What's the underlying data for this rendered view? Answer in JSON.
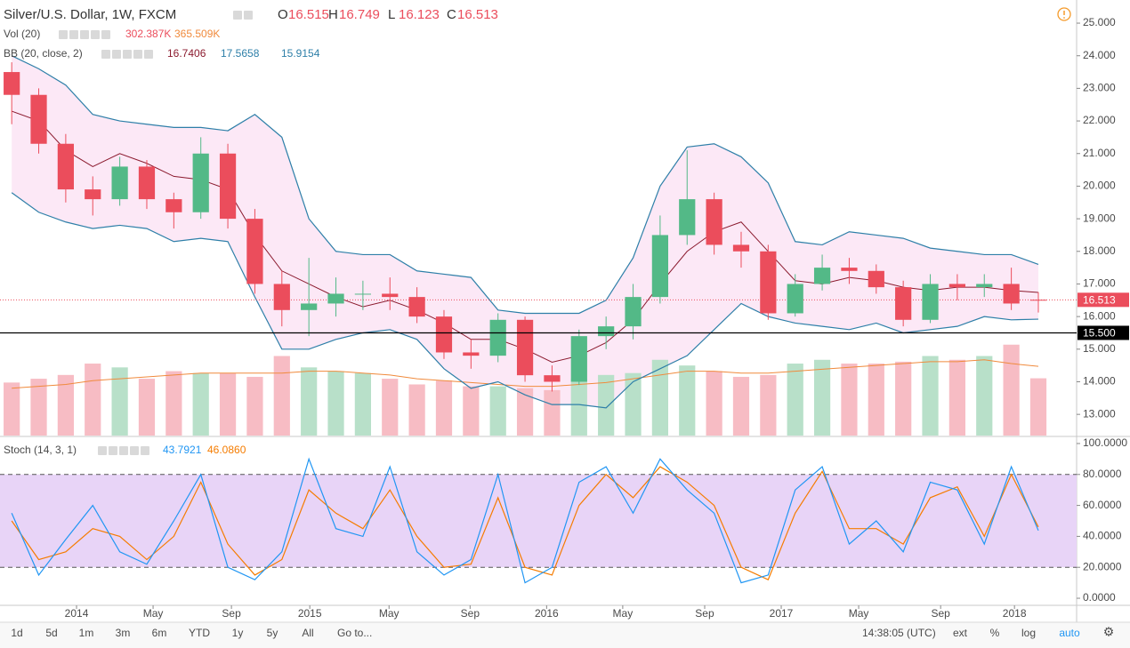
{
  "chart_data": {
    "type": "candlestick",
    "title": "Silver/U.S. Dollar, 1W, FXCM",
    "ohlc_legend": [
      {
        "label": "O",
        "value": "16.515"
      },
      {
        "label": "H",
        "value": "16.749"
      },
      {
        "label": "L",
        "value": "16.123"
      },
      {
        "label": "C",
        "value": "16.513"
      }
    ],
    "x": [
      2,
      8,
      14,
      20,
      26,
      32,
      38,
      44,
      50,
      56,
      62,
      68,
      74,
      80,
      86,
      92,
      98,
      104,
      110,
      116,
      122,
      128,
      134,
      140,
      146,
      152,
      158,
      164,
      170,
      176,
      182,
      188,
      194,
      200,
      206,
      212,
      218,
      224,
      230
    ],
    "xlim": [
      -0.6,
      238.5
    ],
    "xticks": [
      {
        "value": 16.4,
        "label": "2014"
      },
      {
        "value": 33.4,
        "label": "May"
      },
      {
        "value": 50.8,
        "label": "Sep"
      },
      {
        "value": 68.2,
        "label": "2015"
      },
      {
        "value": 85.8,
        "label": "May"
      },
      {
        "value": 103.8,
        "label": "Sep"
      },
      {
        "value": 120.8,
        "label": "2016"
      },
      {
        "value": 137.7,
        "label": "May"
      },
      {
        "value": 155.9,
        "label": "Sep"
      },
      {
        "value": 172.9,
        "label": "2017"
      },
      {
        "value": 190.1,
        "label": "May"
      },
      {
        "value": 208.3,
        "label": "Sep"
      },
      {
        "value": 224.7,
        "label": "2018"
      }
    ],
    "open": [
      23.5,
      22.8,
      21.3,
      19.9,
      19.6,
      20.6,
      19.6,
      19.2,
      21.0,
      19.0,
      17.0,
      16.2,
      16.4,
      16.7,
      16.7,
      16.6,
      16.0,
      14.9,
      14.8,
      15.9,
      14.2,
      14.0,
      15.4,
      15.7,
      16.6,
      18.5,
      19.6,
      18.2,
      18.0,
      16.1,
      17.0,
      17.5,
      17.4,
      16.9,
      15.9,
      17.0,
      16.9,
      17.0,
      16.515
    ],
    "high": [
      23.8,
      23.0,
      21.6,
      20.3,
      20.9,
      20.8,
      19.8,
      21.5,
      21.3,
      19.3,
      17.4,
      17.8,
      17.2,
      17.1,
      17.2,
      16.9,
      16.2,
      15.3,
      16.1,
      16.0,
      14.5,
      15.6,
      16.0,
      17.0,
      19.1,
      21.1,
      19.8,
      18.6,
      18.2,
      17.3,
      17.9,
      17.8,
      17.6,
      17.1,
      17.3,
      17.3,
      17.3,
      17.5,
      16.749
    ],
    "low": [
      21.9,
      21.0,
      19.5,
      19.1,
      19.4,
      19.3,
      18.7,
      19.0,
      18.7,
      16.7,
      15.7,
      15.4,
      16.0,
      16.2,
      16.2,
      15.8,
      14.7,
      14.4,
      14.6,
      14.0,
      13.7,
      13.9,
      15.0,
      15.3,
      16.4,
      18.2,
      17.9,
      17.5,
      15.9,
      16.0,
      16.8,
      17.0,
      16.7,
      15.7,
      15.8,
      16.5,
      16.6,
      16.2,
      16.123
    ],
    "close": [
      22.8,
      21.3,
      19.9,
      19.6,
      20.6,
      19.6,
      19.2,
      21.0,
      19.0,
      17.0,
      16.2,
      16.4,
      16.7,
      16.7,
      16.6,
      16.0,
      14.9,
      14.8,
      15.9,
      14.2,
      14.0,
      15.4,
      15.7,
      16.6,
      18.5,
      19.6,
      18.2,
      18.0,
      16.1,
      17.0,
      17.5,
      17.4,
      16.9,
      15.9,
      17.0,
      16.9,
      17.0,
      16.4,
      16.513
    ],
    "up_color": "#53b987",
    "down_color": "#eb4d5c",
    "ylim": [
      12.35,
      25.71
    ],
    "yticks": [
      {
        "value": 13,
        "label": "13.000"
      },
      {
        "value": 14,
        "label": "14.000"
      },
      {
        "value": 15,
        "label": "15.000"
      },
      {
        "value": 16,
        "label": "16.000"
      },
      {
        "value": 17,
        "label": "17.000"
      },
      {
        "value": 18,
        "label": "18.000"
      },
      {
        "value": 19,
        "label": "19.000"
      },
      {
        "value": 20,
        "label": "20.000"
      },
      {
        "value": 21,
        "label": "21.000"
      },
      {
        "value": 22,
        "label": "22.000"
      },
      {
        "value": 23,
        "label": "23.000"
      },
      {
        "value": 24,
        "label": "24.000"
      },
      {
        "value": 25,
        "label": "25.000"
      }
    ],
    "price_lines": [
      {
        "value": 16.513,
        "label": "16.513",
        "color": "#eb4d5c"
      },
      {
        "value": 15.5,
        "label": "15.500",
        "color": "#000000"
      }
    ],
    "bollinger": {
      "label": "BB (20, close, 2)",
      "legend_values": [
        "16.7406",
        "17.5658",
        "15.9154"
      ],
      "band_color": "#2e7fa8",
      "basis_color": "#8b1a2e",
      "fill": "#fce8f6",
      "upper": [
        24.0,
        23.6,
        23.1,
        22.2,
        22.0,
        21.9,
        21.8,
        21.8,
        21.7,
        22.2,
        21.5,
        19.0,
        18.0,
        17.9,
        17.9,
        17.4,
        17.3,
        17.2,
        16.2,
        16.1,
        16.1,
        16.1,
        16.5,
        17.8,
        20.0,
        21.2,
        21.3,
        20.9,
        20.1,
        18.3,
        18.2,
        18.6,
        18.5,
        18.4,
        18.1,
        18.0,
        17.9,
        17.9,
        17.6
      ],
      "middle": [
        22.3,
        22.0,
        21.1,
        20.6,
        21.0,
        20.7,
        20.3,
        20.2,
        19.9,
        18.5,
        17.4,
        17.0,
        16.6,
        16.3,
        16.5,
        16.2,
        15.8,
        15.3,
        15.3,
        15.0,
        14.6,
        14.8,
        15.2,
        15.9,
        17.0,
        18.0,
        18.6,
        18.9,
        18.0,
        17.1,
        17.0,
        17.2,
        17.1,
        16.9,
        16.8,
        16.9,
        16.9,
        16.8,
        16.74
      ],
      "lower": [
        19.8,
        19.2,
        18.9,
        18.7,
        18.8,
        18.7,
        18.3,
        18.4,
        18.3,
        16.6,
        15.0,
        15.0,
        15.3,
        15.5,
        15.6,
        15.3,
        14.4,
        13.8,
        14.0,
        13.6,
        13.3,
        13.3,
        13.2,
        14.0,
        14.4,
        14.8,
        15.6,
        16.4,
        16.0,
        15.8,
        15.7,
        15.6,
        15.8,
        15.5,
        15.6,
        15.7,
        16.0,
        15.9,
        15.92
      ]
    },
    "volume": {
      "label": "Vol (20)",
      "legend_values": [
        "302.387K",
        "365.509K"
      ],
      "ylim": [
        0,
        2300
      ],
      "up_color": "#b8e0c9",
      "down_color": "#f7bcc4",
      "ma_color": "#f08a3c",
      "values": [
        280,
        300,
        320,
        380,
        360,
        300,
        340,
        330,
        330,
        310,
        420,
        360,
        340,
        330,
        300,
        270,
        290,
        260,
        260,
        250,
        240,
        300,
        320,
        330,
        400,
        370,
        340,
        310,
        320,
        380,
        400,
        380,
        380,
        390,
        420,
        400,
        420,
        480,
        302.387
      ],
      "ma": [
        250,
        260,
        270,
        290,
        300,
        310,
        320,
        330,
        330,
        330,
        330,
        340,
        340,
        330,
        320,
        300,
        290,
        280,
        270,
        260,
        260,
        270,
        280,
        300,
        320,
        340,
        340,
        330,
        330,
        340,
        350,
        360,
        370,
        380,
        390,
        390,
        400,
        380,
        365.509
      ]
    },
    "stoch": {
      "label": "Stoch (14, 3, 1)",
      "legend_values": [
        "43.7921",
        "46.0860"
      ],
      "k_color": "#2196f3",
      "d_color": "#f57c00",
      "fill": "#e8d4f7",
      "band": [
        20,
        80
      ],
      "ylim": [
        -4,
        104
      ],
      "yticks": [
        {
          "value": 0,
          "label": "0.0000"
        },
        {
          "value": 20,
          "label": "20.0000"
        },
        {
          "value": 40,
          "label": "40.0000"
        },
        {
          "value": 60,
          "label": "60.0000"
        },
        {
          "value": 80,
          "label": "80.0000"
        },
        {
          "value": 100,
          "label": "100.0000"
        }
      ],
      "k": [
        55,
        15,
        38,
        60,
        30,
        22,
        50,
        80,
        20,
        12,
        30,
        90,
        45,
        40,
        85,
        30,
        15,
        25,
        80,
        10,
        20,
        75,
        85,
        55,
        90,
        70,
        55,
        10,
        15,
        70,
        85,
        35,
        50,
        30,
        75,
        70,
        35,
        85,
        43.7921
      ],
      "d": [
        50,
        25,
        30,
        45,
        40,
        25,
        40,
        75,
        35,
        15,
        25,
        70,
        55,
        45,
        70,
        40,
        20,
        22,
        65,
        20,
        15,
        60,
        80,
        65,
        85,
        75,
        60,
        20,
        12,
        55,
        82,
        45,
        45,
        35,
        65,
        72,
        40,
        80,
        46.086
      ]
    },
    "toolbar": {
      "ranges": [
        "1d",
        "5d",
        "1m",
        "3m",
        "6m",
        "YTD",
        "1y",
        "5y",
        "All"
      ],
      "goto": "Go to...",
      "time": "14:38:05 (UTC)",
      "options": [
        "ext",
        "%",
        "log",
        "auto"
      ]
    }
  }
}
